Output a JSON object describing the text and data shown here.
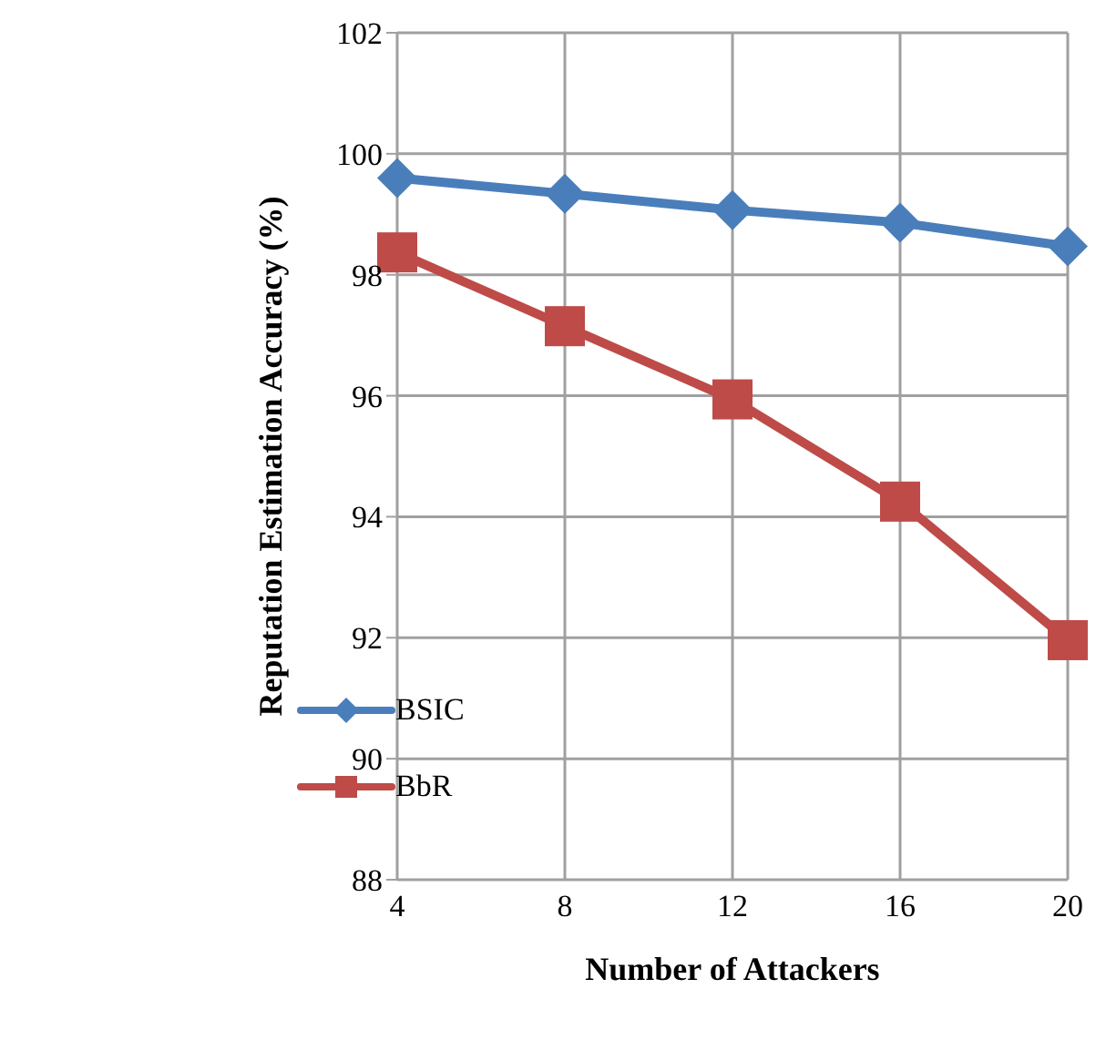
{
  "chart_data": {
    "type": "line",
    "xlabel": "Number of Attackers",
    "ylabel": "Reputation Estimation Accuracy (%)",
    "categories": [
      "4",
      "8",
      "12",
      "16",
      "20"
    ],
    "series": [
      {
        "name": "BSIC",
        "color": "#4a7ebb",
        "values": [
          99.6,
          99.34,
          99.07,
          98.86,
          98.47
        ],
        "marker": "diamond"
      },
      {
        "name": "BbR",
        "color": "#be4b48",
        "values": [
          98.37,
          97.15,
          95.94,
          94.25,
          91.96
        ],
        "marker": "square"
      }
    ],
    "ylim": [
      88,
      102
    ],
    "yticks": [
      88,
      90,
      92,
      94,
      96,
      98,
      100,
      102
    ],
    "grid": true,
    "legend": "bottom left"
  }
}
